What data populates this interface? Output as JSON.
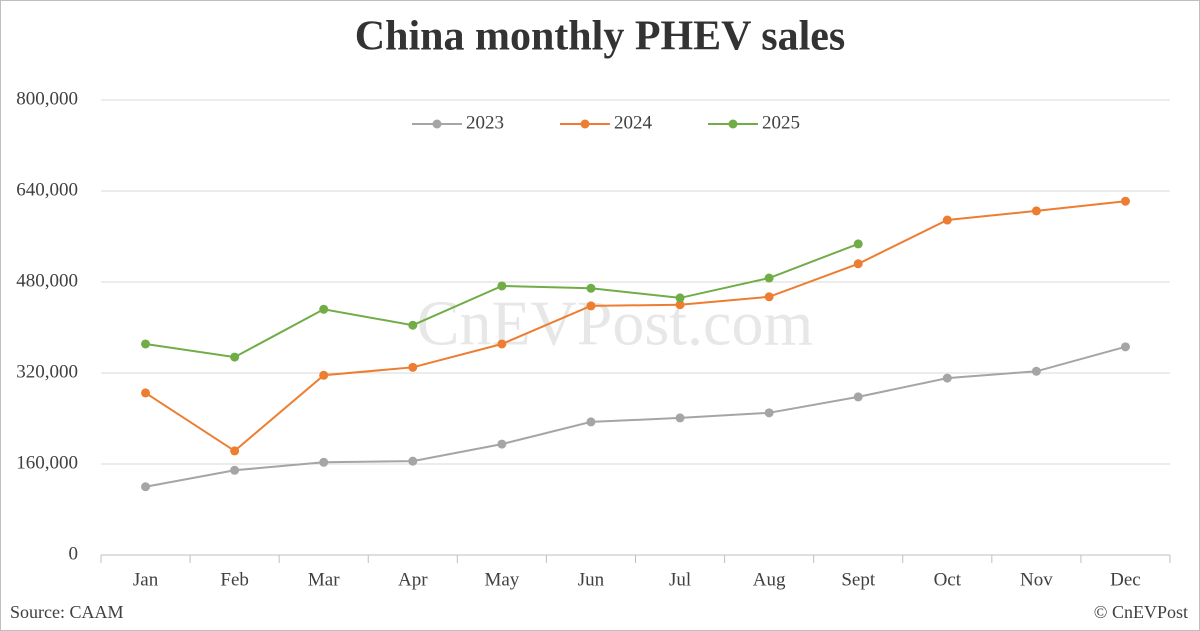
{
  "chart_data": {
    "type": "line",
    "title": "China monthly PHEV sales",
    "categories": [
      "Jan",
      "Feb",
      "Mar",
      "Apr",
      "May",
      "Jun",
      "Jul",
      "Aug",
      "Sept",
      "Oct",
      "Nov",
      "Dec"
    ],
    "series": [
      {
        "name": "2023",
        "color": "#a5a5a5",
        "values": [
          120000,
          149000,
          163000,
          165000,
          195000,
          234000,
          241000,
          250000,
          278000,
          311000,
          323000,
          366000
        ]
      },
      {
        "name": "2024",
        "color": "#ed7d31",
        "values": [
          285000,
          183000,
          316000,
          330000,
          371000,
          438000,
          440000,
          454000,
          512000,
          589000,
          605000,
          622000
        ]
      },
      {
        "name": "2025",
        "color": "#70ad47",
        "values": [
          371000,
          348000,
          432000,
          404000,
          473000,
          469000,
          452000,
          487000,
          547000,
          null,
          null,
          null
        ]
      }
    ],
    "ylim": [
      0,
      800000
    ],
    "yticks": [
      0,
      {
        "value": 160000,
        "label": "160,000"
      },
      {
        "value": 320000,
        "label": "320,000"
      },
      {
        "value": 480000,
        "label": "480,000"
      },
      {
        "value": 640000,
        "label": "640,000"
      },
      {
        "value": 800000,
        "label": "800,000"
      }
    ],
    "grid": true,
    "legend": "top",
    "watermark": "CnEVPost.com",
    "source": "Source: CAAM",
    "credit": "© CnEVPost"
  }
}
